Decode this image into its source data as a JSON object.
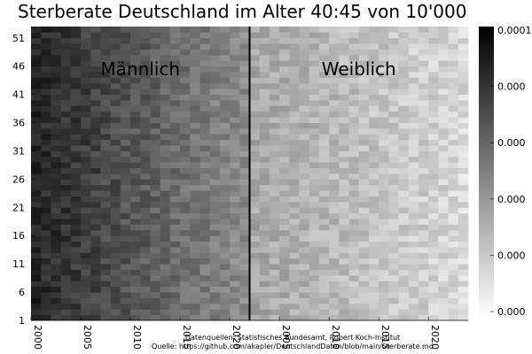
{
  "chart_data": {
    "type": "heatmap",
    "title": "Sterberate Deutschland im Alter 40:45 von 10'000",
    "xlabel": "",
    "ylabel": "",
    "panels": [
      {
        "name": "Männlich",
        "x_range": [
          2000,
          2022
        ]
      },
      {
        "name": "Weiblich",
        "x_range": [
          2022,
          2044
        ]
      }
    ],
    "x_ticks": [
      {
        "value": 2000,
        "label": "2000"
      },
      {
        "value": 2005,
        "label": "2005"
      },
      {
        "value": 2010,
        "label": "2010"
      },
      {
        "value": 2015,
        "label": "2015"
      },
      {
        "value": 2020,
        "label": "2020"
      },
      {
        "value": 2025,
        "label": "2005"
      },
      {
        "value": 2030,
        "label": "2010"
      },
      {
        "value": 2035,
        "label": "2015"
      },
      {
        "value": 2040,
        "label": "2020"
      }
    ],
    "xlim": [
      2000,
      2044
    ],
    "y_ticks": [
      1,
      6,
      11,
      16,
      21,
      26,
      31,
      36,
      41,
      46,
      51
    ],
    "ylim": [
      1,
      53
    ],
    "colorscale": {
      "name": "grays (reversed)",
      "low": "#ffffff",
      "high": "#000000"
    },
    "colorbar_ticks": [
      "0.000",
      "0.000",
      "0.000",
      "0.000",
      "0.000",
      "0.0001"
    ],
    "approx_value_level": {
      "maennlich_2000": 0.85,
      "maennlich_2021": 0.45,
      "weiblich_2000": 0.35,
      "weiblich_2021": 0.15
    },
    "sources": [
      "Datenquellen: Statistisches Bundesamt, Robert Koch-Institut",
      "Quelle: https://github.com/akapler/DeutschlandDaten/blob/main/Sterberate.md"
    ]
  }
}
